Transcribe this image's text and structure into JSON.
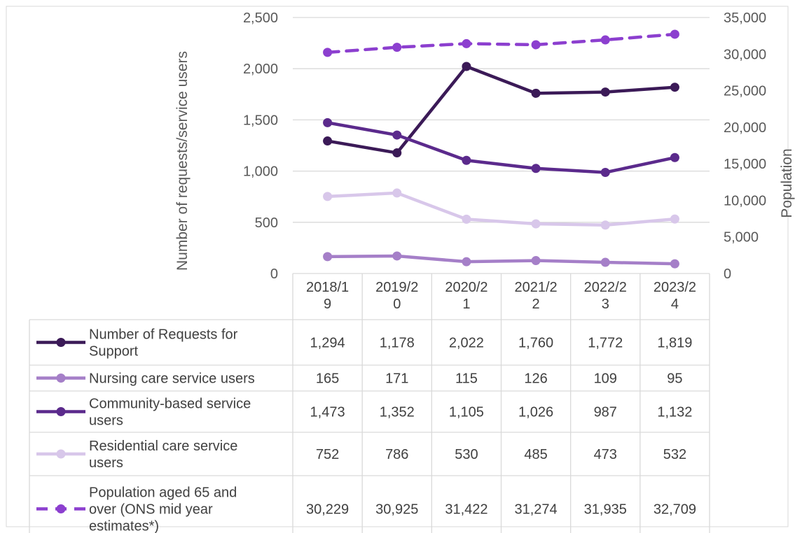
{
  "chart_data": {
    "type": "line",
    "categories": [
      [
        "2018/1",
        "9"
      ],
      [
        "2019/2",
        "0"
      ],
      [
        "2020/2",
        "1"
      ],
      [
        "2021/2",
        "2"
      ],
      [
        "2022/2",
        "3"
      ],
      [
        "2023/2",
        "4"
      ]
    ],
    "ylabel": "Number of requests/service users",
    "y2label": "Population",
    "ylim": [
      0,
      2500
    ],
    "y2lim": [
      0,
      35000
    ],
    "yticks": [
      "0",
      "500",
      "1,000",
      "1,500",
      "2,000",
      "2,500"
    ],
    "y2ticks": [
      "0",
      "5,000",
      "10,000",
      "15,000",
      "20,000",
      "25,000",
      "30,000",
      "35,000"
    ],
    "grid": true,
    "legend_placement": "data-table",
    "series": [
      {
        "name_lines": [
          "Number of Requests for",
          "Support"
        ],
        "axis": "left",
        "color": "#3b1a57",
        "dashed": false,
        "values": [
          1294,
          1178,
          2022,
          1760,
          1772,
          1819
        ],
        "labels": [
          "1,294",
          "1,178",
          "2,022",
          "1,760",
          "1,772",
          "1,819"
        ]
      },
      {
        "name_lines": [
          "Nursing care service users"
        ],
        "axis": "left",
        "color": "#a57fc8",
        "dashed": false,
        "values": [
          165,
          171,
          115,
          126,
          109,
          95
        ],
        "labels": [
          "165",
          "171",
          "115",
          "126",
          "109",
          "95"
        ]
      },
      {
        "name_lines": [
          "Community-based service",
          "users"
        ],
        "axis": "left",
        "color": "#5b2a8c",
        "dashed": false,
        "values": [
          1473,
          1352,
          1105,
          1026,
          987,
          1132
        ],
        "labels": [
          "1,473",
          "1,352",
          "1,105",
          "1,026",
          "987",
          "1,132"
        ]
      },
      {
        "name_lines": [
          "Residential care service",
          "users"
        ],
        "axis": "left",
        "color": "#d8c7ea",
        "dashed": false,
        "values": [
          752,
          786,
          530,
          485,
          473,
          532
        ],
        "labels": [
          "752",
          "786",
          "530",
          "485",
          "473",
          "532"
        ]
      },
      {
        "name_lines": [
          "Population aged 65 and",
          "over (ONS mid year",
          "estimates*)"
        ],
        "axis": "right",
        "color": "#8c3fcf",
        "dashed": true,
        "values": [
          30229,
          30925,
          31422,
          31274,
          31935,
          32709
        ],
        "labels": [
          "30,229",
          "30,925",
          "31,422",
          "31,274",
          "31,935",
          "32,709"
        ]
      }
    ]
  }
}
